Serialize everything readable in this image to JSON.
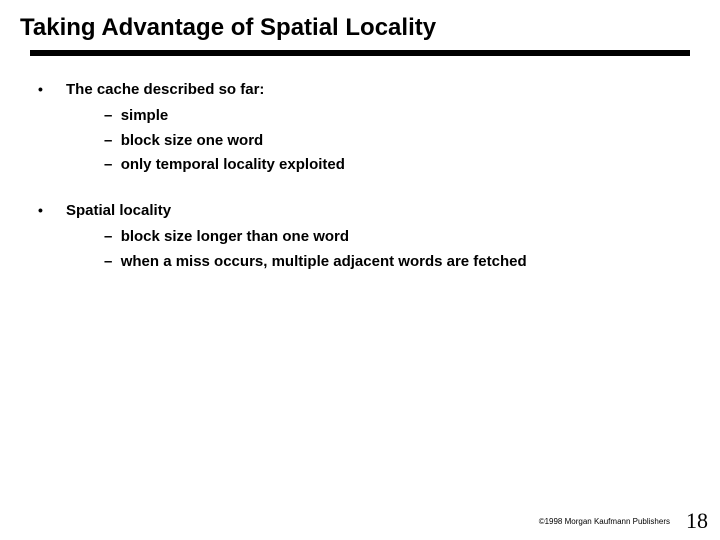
{
  "title": "Taking Advantage of Spatial Locality",
  "bullets": [
    {
      "lead": "The cache described so far:",
      "subs": [
        "simple",
        "block size one word",
        "only temporal locality exploited"
      ]
    },
    {
      "lead": "Spatial locality",
      "subs": [
        "block size longer than one word",
        "when a miss occurs, multiple adjacent words are fetched"
      ]
    }
  ],
  "copyright": "©1998 Morgan Kaufmann Publishers",
  "pagenum": "18",
  "colors": {
    "background": "#ffffff",
    "text": "#000000",
    "rule": "#000000"
  }
}
